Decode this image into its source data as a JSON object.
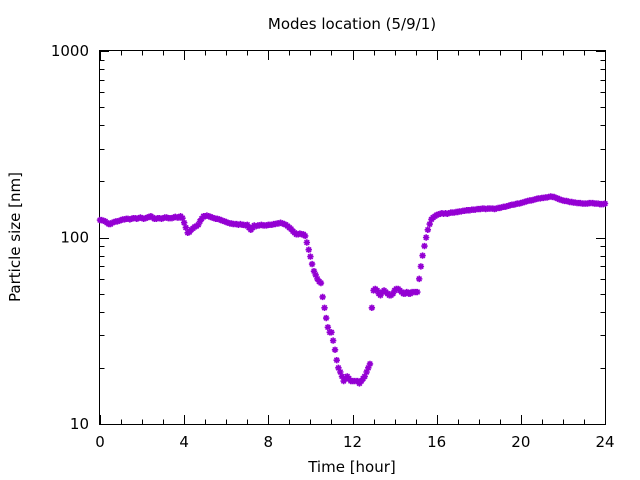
{
  "chart_data": {
    "type": "scatter",
    "title": "Modes location (5/9/1)",
    "xlabel": "Time [hour]",
    "ylabel": "Particle size [nm]",
    "xlim": [
      0,
      24
    ],
    "ylim": [
      10,
      1000
    ],
    "yscale": "log",
    "grid": false,
    "legend": "none",
    "xticks": [
      0,
      4,
      8,
      12,
      16,
      20,
      24
    ],
    "xtick_labels": [
      "0",
      "4",
      "8",
      "12",
      "16",
      "20",
      "24"
    ],
    "yticks": [
      10,
      100,
      1000
    ],
    "ytick_labels": [
      "10",
      "100",
      "1000"
    ],
    "marker_color": "#9400D3",
    "series": [
      {
        "values": [
          [
            0.0,
            124
          ],
          [
            0.08,
            124
          ],
          [
            0.17,
            123
          ],
          [
            0.25,
            122
          ],
          [
            0.33,
            120
          ],
          [
            0.42,
            118
          ],
          [
            0.5,
            118
          ],
          [
            0.58,
            120
          ],
          [
            0.67,
            121
          ],
          [
            0.75,
            122
          ],
          [
            0.83,
            122
          ],
          [
            0.92,
            123
          ],
          [
            1.0,
            124
          ],
          [
            1.08,
            125
          ],
          [
            1.17,
            125
          ],
          [
            1.25,
            126
          ],
          [
            1.33,
            126
          ],
          [
            1.42,
            125
          ],
          [
            1.5,
            126
          ],
          [
            1.58,
            127
          ],
          [
            1.67,
            127
          ],
          [
            1.75,
            126
          ],
          [
            1.83,
            127
          ],
          [
            1.92,
            128
          ],
          [
            2.0,
            127
          ],
          [
            2.08,
            126
          ],
          [
            2.17,
            127
          ],
          [
            2.25,
            128
          ],
          [
            2.33,
            129
          ],
          [
            2.42,
            130
          ],
          [
            2.5,
            128
          ],
          [
            2.58,
            126
          ],
          [
            2.67,
            126
          ],
          [
            2.75,
            127
          ],
          [
            2.83,
            127
          ],
          [
            2.92,
            126
          ],
          [
            3.0,
            127
          ],
          [
            3.08,
            128
          ],
          [
            3.17,
            128
          ],
          [
            3.25,
            127
          ],
          [
            3.33,
            127
          ],
          [
            3.42,
            127
          ],
          [
            3.5,
            128
          ],
          [
            3.58,
            129
          ],
          [
            3.67,
            128
          ],
          [
            3.75,
            128
          ],
          [
            3.83,
            130
          ],
          [
            3.92,
            127
          ],
          [
            4.0,
            120
          ],
          [
            4.08,
            113
          ],
          [
            4.17,
            106
          ],
          [
            4.25,
            107
          ],
          [
            4.33,
            110
          ],
          [
            4.42,
            112
          ],
          [
            4.5,
            114
          ],
          [
            4.58,
            115
          ],
          [
            4.67,
            117
          ],
          [
            4.75,
            122
          ],
          [
            4.83,
            126
          ],
          [
            4.92,
            130
          ],
          [
            5.0,
            130
          ],
          [
            5.08,
            131
          ],
          [
            5.17,
            130
          ],
          [
            5.25,
            129
          ],
          [
            5.33,
            128
          ],
          [
            5.42,
            127
          ],
          [
            5.5,
            126
          ],
          [
            5.58,
            126
          ],
          [
            5.67,
            125
          ],
          [
            5.75,
            124
          ],
          [
            5.83,
            123
          ],
          [
            5.92,
            122
          ],
          [
            6.0,
            121
          ],
          [
            6.08,
            120
          ],
          [
            6.17,
            119
          ],
          [
            6.25,
            119
          ],
          [
            6.33,
            118
          ],
          [
            6.42,
            118
          ],
          [
            6.5,
            118
          ],
          [
            6.58,
            117
          ],
          [
            6.67,
            118
          ],
          [
            6.75,
            117
          ],
          [
            6.83,
            117
          ],
          [
            6.92,
            116
          ],
          [
            7.0,
            117
          ],
          [
            7.08,
            113
          ],
          [
            7.17,
            110
          ],
          [
            7.25,
            113
          ],
          [
            7.33,
            116
          ],
          [
            7.42,
            115
          ],
          [
            7.5,
            116
          ],
          [
            7.58,
            116
          ],
          [
            7.67,
            117
          ],
          [
            7.75,
            116
          ],
          [
            7.83,
            116
          ],
          [
            7.92,
            116
          ],
          [
            8.0,
            117
          ],
          [
            8.08,
            117
          ],
          [
            8.17,
            117
          ],
          [
            8.25,
            118
          ],
          [
            8.33,
            118
          ],
          [
            8.42,
            119
          ],
          [
            8.5,
            119
          ],
          [
            8.58,
            120
          ],
          [
            8.67,
            119
          ],
          [
            8.75,
            118
          ],
          [
            8.83,
            117
          ],
          [
            8.92,
            115
          ],
          [
            9.0,
            113
          ],
          [
            9.08,
            111
          ],
          [
            9.17,
            108
          ],
          [
            9.25,
            106
          ],
          [
            9.33,
            104
          ],
          [
            9.42,
            104
          ],
          [
            9.5,
            105
          ],
          [
            9.58,
            104
          ],
          [
            9.67,
            104
          ],
          [
            9.75,
            102
          ],
          [
            9.83,
            94
          ],
          [
            9.92,
            86
          ],
          [
            10.0,
            79
          ],
          [
            10.08,
            72
          ],
          [
            10.17,
            66
          ],
          [
            10.25,
            63
          ],
          [
            10.33,
            60
          ],
          [
            10.42,
            58
          ],
          [
            10.5,
            57
          ],
          [
            10.58,
            48
          ],
          [
            10.67,
            42
          ],
          [
            10.75,
            37
          ],
          [
            10.83,
            33
          ],
          [
            10.92,
            31
          ],
          [
            11.0,
            31
          ],
          [
            11.08,
            28
          ],
          [
            11.17,
            25
          ],
          [
            11.25,
            22
          ],
          [
            11.33,
            20
          ],
          [
            11.42,
            19
          ],
          [
            11.5,
            18
          ],
          [
            11.58,
            17
          ],
          [
            11.67,
            17.5
          ],
          [
            11.75,
            18
          ],
          [
            11.83,
            17.5
          ],
          [
            11.92,
            17
          ],
          [
            12.0,
            17
          ],
          [
            12.08,
            17
          ],
          [
            12.17,
            17
          ],
          [
            12.25,
            17
          ],
          [
            12.33,
            16.5
          ],
          [
            12.42,
            17
          ],
          [
            12.5,
            17.5
          ],
          [
            12.58,
            18
          ],
          [
            12.67,
            19
          ],
          [
            12.75,
            20
          ],
          [
            12.83,
            21
          ],
          [
            12.92,
            42
          ],
          [
            13.0,
            52
          ],
          [
            13.08,
            53
          ],
          [
            13.17,
            52
          ],
          [
            13.25,
            50
          ],
          [
            13.33,
            49
          ],
          [
            13.42,
            51
          ],
          [
            13.5,
            52
          ],
          [
            13.58,
            51
          ],
          [
            13.67,
            50
          ],
          [
            13.75,
            49
          ],
          [
            13.83,
            49
          ],
          [
            13.92,
            50
          ],
          [
            14.0,
            52
          ],
          [
            14.08,
            53
          ],
          [
            14.17,
            53
          ],
          [
            14.25,
            52
          ],
          [
            14.33,
            51
          ],
          [
            14.42,
            50
          ],
          [
            14.5,
            50
          ],
          [
            14.58,
            51
          ],
          [
            14.67,
            50
          ],
          [
            14.75,
            50
          ],
          [
            14.83,
            51
          ],
          [
            14.92,
            51
          ],
          [
            15.0,
            51
          ],
          [
            15.08,
            51
          ],
          [
            15.17,
            60
          ],
          [
            15.25,
            70
          ],
          [
            15.33,
            80
          ],
          [
            15.42,
            90
          ],
          [
            15.5,
            100
          ],
          [
            15.58,
            110
          ],
          [
            15.67,
            118
          ],
          [
            15.75,
            125
          ],
          [
            15.83,
            128
          ],
          [
            15.92,
            130
          ],
          [
            16.0,
            132
          ],
          [
            16.08,
            133
          ],
          [
            16.17,
            134
          ],
          [
            16.25,
            135
          ],
          [
            16.33,
            134
          ],
          [
            16.42,
            135
          ],
          [
            16.5,
            134
          ],
          [
            16.58,
            135
          ],
          [
            16.67,
            136
          ],
          [
            16.75,
            136
          ],
          [
            16.83,
            136
          ],
          [
            16.92,
            137
          ],
          [
            17.0,
            137
          ],
          [
            17.08,
            138
          ],
          [
            17.17,
            138
          ],
          [
            17.25,
            139
          ],
          [
            17.33,
            139
          ],
          [
            17.42,
            140
          ],
          [
            17.5,
            140
          ],
          [
            17.58,
            140
          ],
          [
            17.67,
            141
          ],
          [
            17.75,
            141
          ],
          [
            17.83,
            141
          ],
          [
            17.92,
            142
          ],
          [
            18.0,
            142
          ],
          [
            18.08,
            142
          ],
          [
            18.17,
            143
          ],
          [
            18.25,
            143
          ],
          [
            18.33,
            142
          ],
          [
            18.42,
            143
          ],
          [
            18.5,
            143
          ],
          [
            18.58,
            143
          ],
          [
            18.67,
            143
          ],
          [
            18.75,
            142
          ],
          [
            18.83,
            143
          ],
          [
            18.92,
            144
          ],
          [
            19.0,
            144
          ],
          [
            19.08,
            145
          ],
          [
            19.17,
            146
          ],
          [
            19.25,
            146
          ],
          [
            19.33,
            147
          ],
          [
            19.42,
            148
          ],
          [
            19.5,
            149
          ],
          [
            19.58,
            150
          ],
          [
            19.67,
            150
          ],
          [
            19.75,
            151
          ],
          [
            19.83,
            152
          ],
          [
            19.92,
            152
          ],
          [
            20.0,
            153
          ],
          [
            20.08,
            154
          ],
          [
            20.17,
            155
          ],
          [
            20.25,
            156
          ],
          [
            20.33,
            157
          ],
          [
            20.42,
            158
          ],
          [
            20.5,
            158
          ],
          [
            20.58,
            159
          ],
          [
            20.67,
            160
          ],
          [
            20.75,
            161
          ],
          [
            20.83,
            162
          ],
          [
            20.92,
            162
          ],
          [
            21.0,
            163
          ],
          [
            21.08,
            163
          ],
          [
            21.17,
            164
          ],
          [
            21.25,
            164
          ],
          [
            21.33,
            165
          ],
          [
            21.42,
            166
          ],
          [
            21.5,
            165
          ],
          [
            21.58,
            165
          ],
          [
            21.67,
            163
          ],
          [
            21.75,
            162
          ],
          [
            21.83,
            160
          ],
          [
            21.92,
            159
          ],
          [
            22.0,
            158
          ],
          [
            22.08,
            157
          ],
          [
            22.17,
            157
          ],
          [
            22.25,
            156
          ],
          [
            22.33,
            155
          ],
          [
            22.42,
            155
          ],
          [
            22.5,
            154
          ],
          [
            22.58,
            154
          ],
          [
            22.67,
            153
          ],
          [
            22.75,
            153
          ],
          [
            22.83,
            153
          ],
          [
            22.92,
            152
          ],
          [
            23.0,
            152
          ],
          [
            23.08,
            152
          ],
          [
            23.17,
            152
          ],
          [
            23.25,
            153
          ],
          [
            23.33,
            153
          ],
          [
            23.42,
            153
          ],
          [
            23.5,
            152
          ],
          [
            23.58,
            152
          ],
          [
            23.67,
            152
          ],
          [
            23.75,
            151
          ],
          [
            23.83,
            151
          ],
          [
            23.92,
            151
          ],
          [
            24.0,
            152
          ]
        ]
      }
    ]
  }
}
